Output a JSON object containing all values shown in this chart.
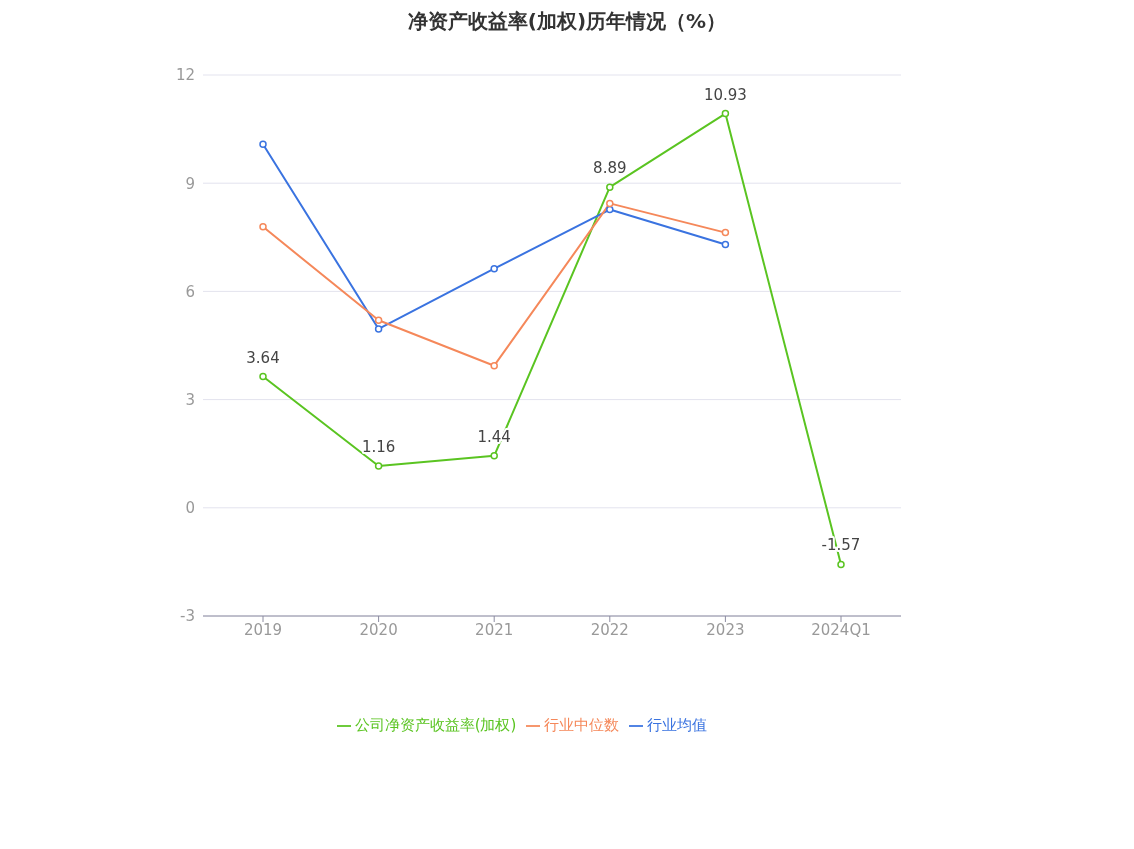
{
  "chart_data": {
    "type": "line",
    "title": "净资产收益率(加权)历年情况（%）",
    "categories": [
      "2019",
      "2020",
      "2021",
      "2022",
      "2023",
      "2024Q1"
    ],
    "series": [
      {
        "name": "公司净资产收益率(加权)",
        "color": "#5ac421",
        "values": [
          3.64,
          1.16,
          1.44,
          8.89,
          10.93,
          -1.57
        ],
        "value_labels": [
          "3.64",
          "1.16",
          "1.44",
          "8.89",
          "10.93",
          "-1.57"
        ]
      },
      {
        "name": "行业均值",
        "color": "#3a73e0",
        "values": [
          10.08,
          4.96,
          6.63,
          8.27,
          7.3,
          null
        ]
      },
      {
        "name": "行业中位数",
        "color": "#f5885a",
        "values": [
          7.79,
          5.2,
          3.94,
          8.44,
          7.63,
          null
        ]
      }
    ],
    "ylim": [
      -3,
      12
    ],
    "yticks": [
      -3,
      0,
      3,
      6,
      9,
      12
    ],
    "grid": "y",
    "legend": "bottom",
    "marker": "circle",
    "line_style": "solid"
  }
}
